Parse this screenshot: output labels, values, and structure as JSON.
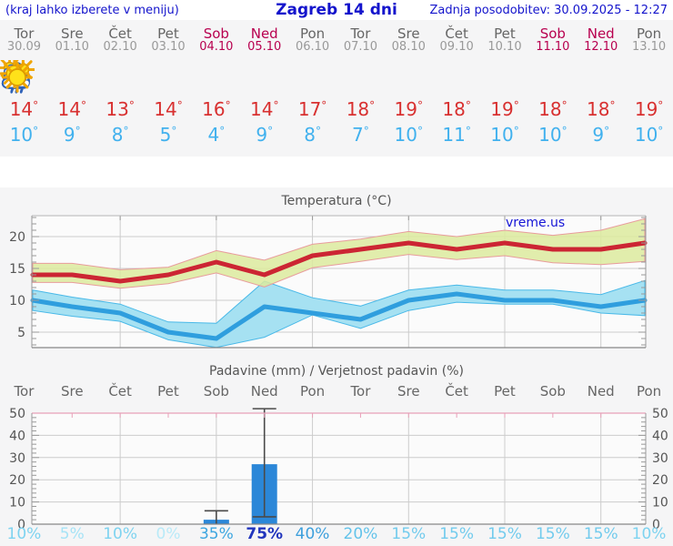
{
  "header": {
    "left_note": "(kraj lahko izberete v meniju)",
    "title": "Zagreb 14 dni",
    "updated": "Zadnja posodobitev: 30.09.2025 - 12:27"
  },
  "units": {
    "degree": "°",
    "percent": "%"
  },
  "watermark": "vreme.us",
  "days": [
    {
      "name": "Tor",
      "date": "30.09",
      "weekend": false,
      "icon": "cloudy-icon",
      "high": 14,
      "low": 10,
      "prob": 10,
      "prob_color": "#7ed3f0"
    },
    {
      "name": "Sre",
      "date": "01.10",
      "weekend": false,
      "icon": "partly-sunny-icon",
      "high": 14,
      "low": 9,
      "prob": 5,
      "prob_color": "#a6e3f6"
    },
    {
      "name": "Čet",
      "date": "02.10",
      "weekend": false,
      "icon": "partly-sunny-icon",
      "high": 13,
      "low": 8,
      "prob": 10,
      "prob_color": "#7ed3f0"
    },
    {
      "name": "Pet",
      "date": "03.10",
      "weekend": false,
      "icon": "sunny-icon",
      "high": 14,
      "low": 5,
      "prob": 0,
      "prob_color": "#b9eaf8"
    },
    {
      "name": "Sob",
      "date": "04.10",
      "weekend": true,
      "icon": "rain-icon",
      "high": 16,
      "low": 4,
      "prob": 35,
      "prob_color": "#3da6e0"
    },
    {
      "name": "Ned",
      "date": "05.10",
      "weekend": true,
      "icon": "sun-rain-icon",
      "high": 14,
      "low": 9,
      "prob": 75,
      "prob_color": "#2135bd"
    },
    {
      "name": "Pon",
      "date": "06.10",
      "weekend": false,
      "icon": "partly-sunny-icon",
      "high": 17,
      "low": 8,
      "prob": 40,
      "prob_color": "#3d9fdc"
    },
    {
      "name": "Tor",
      "date": "07.10",
      "weekend": false,
      "icon": "mostly-sunny-icon",
      "high": 18,
      "low": 7,
      "prob": 20,
      "prob_color": "#63c3ea"
    },
    {
      "name": "Sre",
      "date": "08.10",
      "weekend": false,
      "icon": "sunny-icon",
      "high": 19,
      "low": 10,
      "prob": 15,
      "prob_color": "#72cbed"
    },
    {
      "name": "Čet",
      "date": "09.10",
      "weekend": false,
      "icon": "sunny-icon",
      "high": 18,
      "low": 11,
      "prob": 15,
      "prob_color": "#72cbed"
    },
    {
      "name": "Pet",
      "date": "10.10",
      "weekend": false,
      "icon": "sunny-icon",
      "high": 19,
      "low": 10,
      "prob": 15,
      "prob_color": "#72cbed"
    },
    {
      "name": "Sob",
      "date": "11.10",
      "weekend": true,
      "icon": "sunny-icon",
      "high": 18,
      "low": 10,
      "prob": 15,
      "prob_color": "#72cbed"
    },
    {
      "name": "Ned",
      "date": "12.10",
      "weekend": true,
      "icon": "sunny-icon",
      "high": 18,
      "low": 9,
      "prob": 15,
      "prob_color": "#72cbed"
    },
    {
      "name": "Pon",
      "date": "13.10",
      "weekend": false,
      "icon": "sunny-icon",
      "high": 19,
      "low": 10,
      "prob": 10,
      "prob_color": "#7ed3f0"
    }
  ],
  "chart_data": [
    {
      "type": "line",
      "title": "Temperatura (°C)",
      "categories": [
        "Tor",
        "Sre",
        "Čet",
        "Pet",
        "Sob",
        "Ned",
        "Pon",
        "Tor",
        "Sre",
        "Čet",
        "Pet",
        "Sob",
        "Ned",
        "Pon"
      ],
      "series": [
        {
          "name": "max",
          "values": [
            14,
            14,
            13,
            14,
            16,
            14,
            17,
            18,
            19,
            18,
            19,
            18,
            18,
            19
          ]
        },
        {
          "name": "max_band_upper",
          "values": [
            15.8,
            15.8,
            14.8,
            15.2,
            17.8,
            16.3,
            18.8,
            19.6,
            20.8,
            20.0,
            21.0,
            20.2,
            21.0,
            22.8
          ]
        },
        {
          "name": "max_band_lower",
          "values": [
            12.8,
            12.8,
            11.9,
            12.6,
            14.3,
            12.1,
            15.1,
            16.1,
            17.2,
            16.4,
            17.0,
            15.9,
            15.6,
            16.1
          ]
        },
        {
          "name": "min",
          "values": [
            10,
            9,
            8,
            5,
            4,
            9,
            8,
            7,
            10,
            11,
            10,
            10,
            9,
            10
          ]
        },
        {
          "name": "min_band_upper",
          "values": [
            11.6,
            10.5,
            9.4,
            6.6,
            6.4,
            13.0,
            10.4,
            9.1,
            11.6,
            12.4,
            11.6,
            11.6,
            10.9,
            13.1
          ]
        },
        {
          "name": "min_band_lower",
          "values": [
            8.4,
            7.5,
            6.7,
            3.8,
            2.6,
            4.2,
            7.7,
            5.6,
            8.4,
            9.7,
            9.4,
            9.4,
            8.0,
            7.6
          ]
        }
      ],
      "ylim": [
        2.6,
        23.6
      ],
      "yticks": [
        5,
        10,
        15,
        20
      ],
      "grid": true,
      "watermark": "vreme.us"
    },
    {
      "type": "bar",
      "title": "Padavine (mm) / Verjetnost padavin (%)",
      "categories": [
        "Tor",
        "Sre",
        "Čet",
        "Pet",
        "Sob",
        "Ned",
        "Pon",
        "Tor",
        "Sre",
        "Čet",
        "Pet",
        "Sob",
        "Ned",
        "Pon"
      ],
      "values": [
        0,
        0,
        0,
        0,
        2,
        27,
        0,
        0,
        0,
        0,
        0,
        0,
        0,
        0
      ],
      "whiskers": [
        {
          "day_index": 4,
          "low": 0,
          "high": 6
        },
        {
          "day_index": 5,
          "low": 3.3,
          "high": 52
        }
      ],
      "probabilities": [
        10,
        5,
        10,
        0,
        35,
        75,
        40,
        20,
        15,
        15,
        15,
        15,
        15,
        10
      ],
      "ylim": [
        0,
        50
      ],
      "yticks": [
        0,
        10,
        20,
        30,
        40,
        50
      ],
      "grid": true
    }
  ],
  "colors": {
    "header_blue": "#1414cc",
    "weekday": "#666666",
    "weekend": "#b8004f",
    "high_temp": "#d83030",
    "low_temp": "#41b1ee",
    "max_line": "#cc2533",
    "max_band": "#dcea9e",
    "max_band_edge": "#e89c9c",
    "min_line": "#2f9ede",
    "min_band": "#a6e1f2",
    "min_band_edge": "#49b9e8",
    "bar": "#2b87d8",
    "whisker": "#4a4a4a",
    "grid": "#cccccc",
    "axis": "#888888",
    "tick": "#999999",
    "precip_top_border": "#e8a0b8"
  }
}
